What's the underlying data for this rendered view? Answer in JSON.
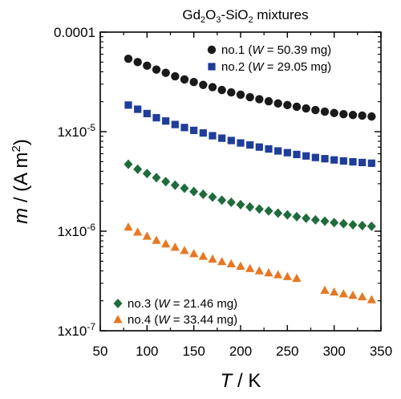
{
  "chart_data": {
    "type": "scatter",
    "title": "Gd2O3-SiO2 mixtures",
    "xlabel": "T / K",
    "ylabel": "m / (A m2)",
    "x_scale": "linear",
    "y_scale": "log",
    "xlim": [
      50,
      350
    ],
    "ylim": [
      1e-07,
      0.0001
    ],
    "x_ticks": [
      50,
      100,
      150,
      200,
      250,
      300,
      350
    ],
    "x_tick_labels": [
      "50",
      "100",
      "150",
      "200",
      "250",
      "300",
      "350"
    ],
    "y_ticks": [
      1e-07,
      1e-06,
      1e-05,
      0.0001
    ],
    "y_tick_labels": [
      "1x10-7",
      "1x10-6",
      "1x10-5",
      "0.0001"
    ],
    "grid": false,
    "legend_top": "top-right",
    "legend_bottom": "bottom-left",
    "series": [
      {
        "name": "no.1 (W = 50.39 mg)",
        "marker": "circle",
        "color": "#1a1a1a",
        "x": [
          80,
          90,
          100,
          110,
          120,
          130,
          140,
          150,
          160,
          170,
          180,
          190,
          200,
          210,
          220,
          230,
          240,
          250,
          260,
          270,
          280,
          290,
          300,
          310,
          320,
          330,
          340
        ],
        "y": [
          5.4e-05,
          5e-05,
          4.6e-05,
          4.2e-05,
          3.9e-05,
          3.6e-05,
          3.35e-05,
          3.15e-05,
          2.95e-05,
          2.8e-05,
          2.62e-05,
          2.48e-05,
          2.35e-05,
          2.22e-05,
          2.12e-05,
          2.02e-05,
          1.92e-05,
          1.85e-05,
          1.78e-05,
          1.71e-05,
          1.65e-05,
          1.59e-05,
          1.54e-05,
          1.5e-05,
          1.47e-05,
          1.45e-05,
          1.42e-05
        ]
      },
      {
        "name": "no.2 (W = 29.05 mg)",
        "marker": "square",
        "color": "#1f3d99",
        "x": [
          80,
          90,
          100,
          110,
          120,
          130,
          140,
          150,
          160,
          170,
          180,
          190,
          200,
          210,
          220,
          230,
          240,
          250,
          260,
          270,
          280,
          290,
          300,
          310,
          320,
          330,
          340
        ],
        "y": [
          1.85e-05,
          1.68e-05,
          1.52e-05,
          1.38e-05,
          1.28e-05,
          1.18e-05,
          1.1e-05,
          1.03e-05,
          9.7e-06,
          9.1e-06,
          8.6e-06,
          8.15e-06,
          7.7e-06,
          7.35e-06,
          7e-06,
          6.7e-06,
          6.4e-06,
          6.15e-06,
          5.9e-06,
          5.7e-06,
          5.5e-06,
          5.35e-06,
          5.2e-06,
          5.08e-06,
          4.98e-06,
          4.9e-06,
          4.82e-06
        ]
      },
      {
        "name": "no.3 (W = 21.46 mg)",
        "marker": "diamond",
        "color": "#1f6b3c",
        "x": [
          80,
          90,
          100,
          110,
          120,
          130,
          140,
          150,
          160,
          170,
          180,
          190,
          200,
          210,
          220,
          230,
          240,
          250,
          260,
          270,
          280,
          290,
          300,
          310,
          320,
          330,
          340
        ],
        "y": [
          4.7e-06,
          4.2e-06,
          3.8e-06,
          3.45e-06,
          3.15e-06,
          2.9e-06,
          2.7e-06,
          2.5e-06,
          2.35e-06,
          2.2e-06,
          2.05e-06,
          1.95e-06,
          1.85e-06,
          1.75e-06,
          1.67e-06,
          1.6e-06,
          1.52e-06,
          1.46e-06,
          1.4e-06,
          1.35e-06,
          1.3e-06,
          1.26e-06,
          1.22e-06,
          1.19e-06,
          1.16e-06,
          1.14e-06,
          1.12e-06
        ]
      },
      {
        "name": "no.4 (W = 33.44 mg)",
        "marker": "triangle",
        "color": "#e87722",
        "x": [
          80,
          90,
          100,
          110,
          120,
          130,
          140,
          150,
          160,
          170,
          180,
          190,
          200,
          210,
          220,
          230,
          240,
          250,
          260,
          290,
          300,
          310,
          320,
          330,
          340
        ],
        "y": [
          1.1e-06,
          9.8e-07,
          8.9e-07,
          8.1e-07,
          7.45e-07,
          6.9e-07,
          6.4e-07,
          5.95e-07,
          5.6e-07,
          5.25e-07,
          4.95e-07,
          4.7e-07,
          4.45e-07,
          4.22e-07,
          4e-07,
          3.82e-07,
          3.65e-07,
          3.5e-07,
          3.36e-07,
          2.55e-07,
          2.45e-07,
          2.35e-07,
          2.27e-07,
          2.2e-07,
          2.05e-07
        ]
      }
    ]
  }
}
